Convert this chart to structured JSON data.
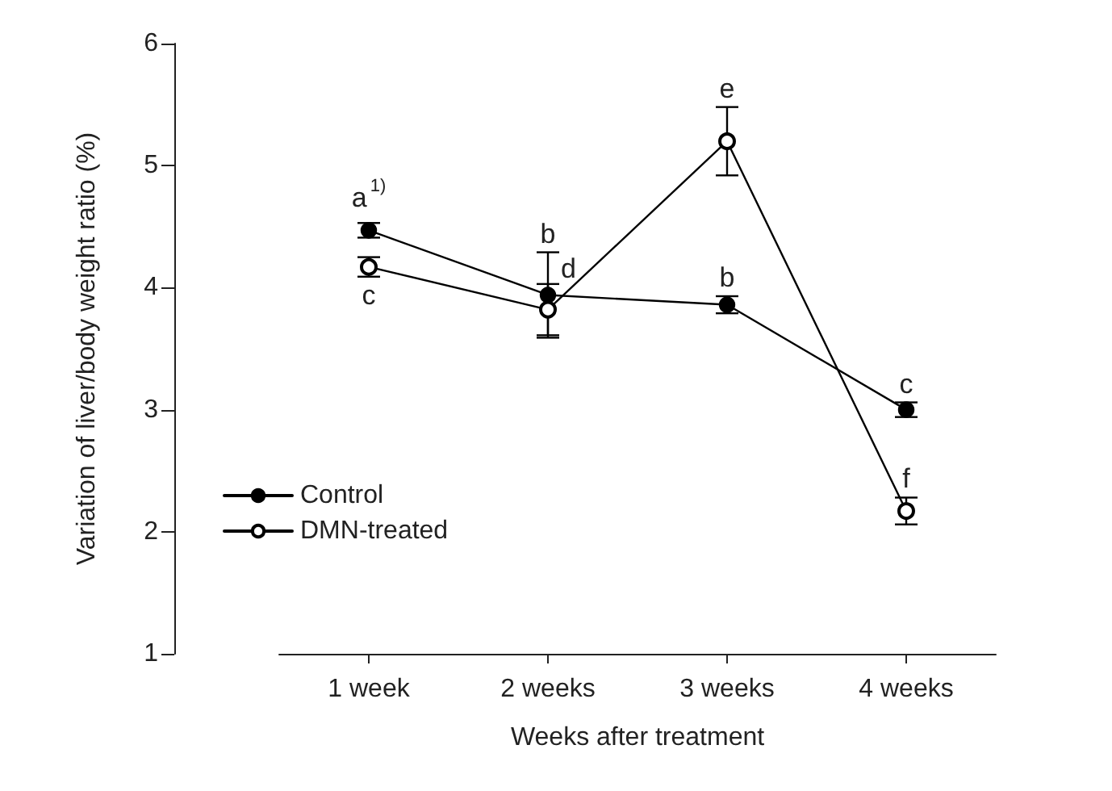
{
  "chart_data": {
    "type": "line",
    "xlabel": "Weeks after treatment",
    "ylabel": "Variation of liver/body weight ratio (%)",
    "categories": [
      "1 week",
      "2 weeks",
      "3 weeks",
      "4 weeks"
    ],
    "series": [
      {
        "name": "Control",
        "color": "#000000",
        "values": [
          4.47,
          3.94,
          3.86,
          3.0
        ],
        "errors": [
          0.06,
          0.35,
          0.07,
          0.06
        ]
      },
      {
        "name": "DMN-treated",
        "color": "#000000",
        "values": [
          4.17,
          3.82,
          5.2,
          2.17
        ],
        "errors": [
          0.08,
          0.21,
          0.28,
          0.11
        ]
      }
    ],
    "ylim": [
      1,
      6
    ],
    "yticks": [
      1,
      2,
      3,
      4,
      5,
      6
    ],
    "grid": false,
    "legend": "bottom left",
    "marker": "circle",
    "line_style": "solid",
    "annotations": [
      {
        "text": "a$^{1)}$",
        "x": "1 week",
        "y": 4.53
      },
      {
        "text": "c",
        "x": "1 week",
        "y": 4.09
      },
      {
        "text": "b",
        "x": "2 weeks",
        "y": 4.29
      },
      {
        "text": "d",
        "x": "2 weeks",
        "y": 3.94
      },
      {
        "text": "b",
        "x": "3 weeks",
        "y": 3.93
      },
      {
        "text": "e",
        "x": "3 weeks",
        "y": 5.48
      },
      {
        "text": "c",
        "x": "4 weeks",
        "y": 3.06
      },
      {
        "text": "f",
        "x": "4 weeks",
        "y": 2.28
      }
    ]
  }
}
